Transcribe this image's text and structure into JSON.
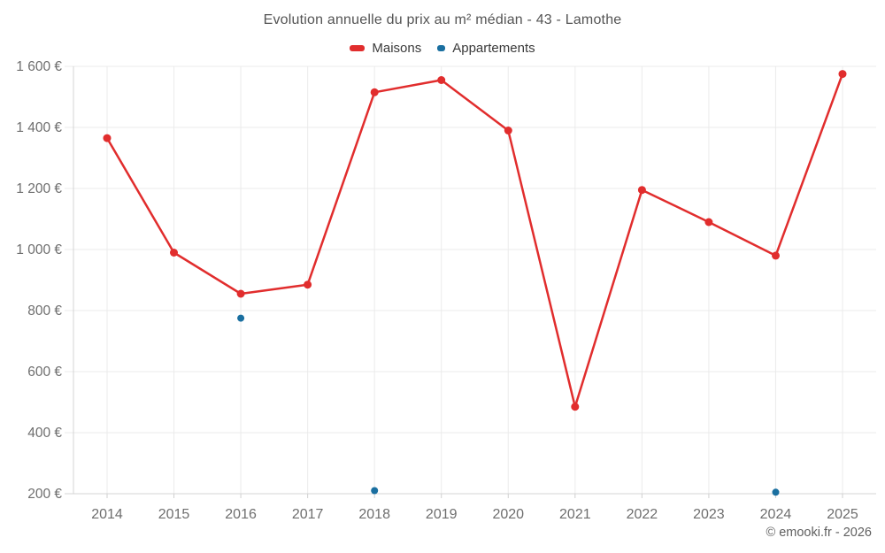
{
  "title": "Evolution annuelle du prix au m² médian - 43 - Lamothe",
  "footer": "© emooki.fr - 2026",
  "legend": {
    "items": [
      {
        "label": "Maisons",
        "color": "#e12d2d"
      },
      {
        "label": "Appartements",
        "color": "#1a6fa0"
      }
    ]
  },
  "colors": {
    "maisons": "#e12d2d",
    "appartements": "#1a6fa0",
    "gridline": "#ebebeb",
    "axis": "#d4d4d4",
    "tick": "#cfcfcf",
    "tick_label": "#6e6e6e",
    "title_text": "#545454",
    "legend_text": "#3a3a3a",
    "footer_text": "#5f5f5f"
  },
  "chart_data": {
    "type": "line",
    "title": "Evolution annuelle du prix au m² médian - 43 - Lamothe",
    "categories": [
      "2014",
      "2015",
      "2016",
      "2017",
      "2018",
      "2019",
      "2020",
      "2021",
      "2022",
      "2023",
      "2024",
      "2025"
    ],
    "series": [
      {
        "name": "Maisons",
        "type": "line",
        "color": "#e12d2d",
        "values": [
          1365,
          990,
          855,
          885,
          1515,
          1555,
          1390,
          485,
          1195,
          1090,
          980,
          1575
        ]
      },
      {
        "name": "Appartements",
        "type": "scatter",
        "color": "#1a6fa0",
        "values": [
          null,
          null,
          775,
          null,
          210,
          null,
          null,
          null,
          null,
          null,
          205,
          null
        ]
      }
    ],
    "xlabel": "",
    "ylabel": "",
    "ylim": [
      200,
      1600
    ],
    "yticks": {
      "values": [
        200,
        400,
        600,
        800,
        1000,
        1200,
        1400,
        1600
      ],
      "labels": [
        "200 €",
        "400 €",
        "600 €",
        "800 €",
        "1 000 €",
        "1 200 €",
        "1 400 €",
        "1 600 €"
      ]
    },
    "grid": true,
    "legend_position": "top"
  }
}
